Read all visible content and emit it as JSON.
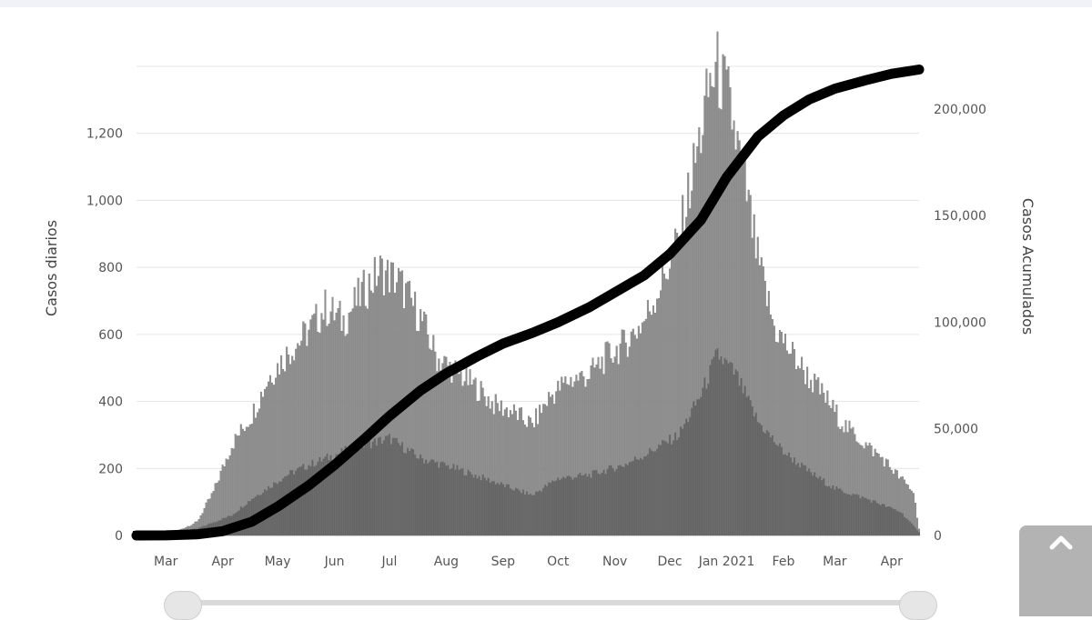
{
  "chart_data": {
    "type": "bar",
    "ylabel_left": "Casos diarios",
    "ylabel_right": "Casos Acumulados",
    "left_axis": {
      "ylim": [
        0,
        1400
      ],
      "ticks": [
        0,
        200,
        400,
        600,
        800,
        1000,
        1200
      ],
      "tick_labels": [
        "0",
        "200",
        "400",
        "600",
        "800",
        "1,000",
        "1,200"
      ]
    },
    "right_axis": {
      "ylim": [
        0,
        220000
      ],
      "ticks": [
        0,
        50000,
        100000,
        150000,
        200000
      ],
      "tick_labels": [
        "0",
        "50,000",
        "100,000",
        "150,000",
        "200,000"
      ]
    },
    "x_axis": {
      "type": "date",
      "range": [
        "2020-02-28",
        "2021-04-30"
      ],
      "ticks": [
        "2020-03-15",
        "2020-04-15",
        "2020-05-15",
        "2020-06-15",
        "2020-07-15",
        "2020-08-15",
        "2020-09-15",
        "2020-10-15",
        "2020-11-15",
        "2020-12-15",
        "2021-01-15",
        "2021-02-15",
        "2021-03-15",
        "2021-04-15"
      ],
      "tick_labels": [
        "Mar",
        "Apr",
        "May",
        "Jun",
        "Jul",
        "Aug",
        "Sep",
        "Oct",
        "Nov",
        "Dec",
        "Jan 2021",
        "Feb",
        "Mar",
        "Apr"
      ]
    },
    "grid": true,
    "series": [
      {
        "type": "bar",
        "axis": "left",
        "color": "#8c8c8c",
        "points": [
          [
            "2020-03-01",
            0
          ],
          [
            "2020-03-10",
            2
          ],
          [
            "2020-03-20",
            10
          ],
          [
            "2020-04-01",
            40
          ],
          [
            "2020-04-10",
            130
          ],
          [
            "2020-04-20",
            270
          ],
          [
            "2020-05-01",
            360
          ],
          [
            "2020-05-10",
            470
          ],
          [
            "2020-05-20",
            540
          ],
          [
            "2020-06-01",
            610
          ],
          [
            "2020-06-10",
            680
          ],
          [
            "2020-06-20",
            640
          ],
          [
            "2020-07-01",
            730
          ],
          [
            "2020-07-10",
            790
          ],
          [
            "2020-07-20",
            760
          ],
          [
            "2020-08-01",
            650
          ],
          [
            "2020-08-10",
            530
          ],
          [
            "2020-08-20",
            490
          ],
          [
            "2020-09-01",
            440
          ],
          [
            "2020-09-10",
            390
          ],
          [
            "2020-09-20",
            370
          ],
          [
            "2020-10-01",
            330
          ],
          [
            "2020-10-10",
            410
          ],
          [
            "2020-10-20",
            460
          ],
          [
            "2020-11-01",
            480
          ],
          [
            "2020-11-10",
            530
          ],
          [
            "2020-11-20",
            570
          ],
          [
            "2020-12-01",
            640
          ],
          [
            "2020-12-10",
            750
          ],
          [
            "2020-12-20",
            880
          ],
          [
            "2021-01-01",
            1200
          ],
          [
            "2021-01-06",
            1350
          ],
          [
            "2021-01-10",
            1390
          ],
          [
            "2021-01-16",
            1300
          ],
          [
            "2021-01-25",
            1050
          ],
          [
            "2021-02-01",
            820
          ],
          [
            "2021-02-10",
            620
          ],
          [
            "2021-02-20",
            540
          ],
          [
            "2021-03-01",
            470
          ],
          [
            "2021-03-10",
            410
          ],
          [
            "2021-03-20",
            330
          ],
          [
            "2021-04-01",
            270
          ],
          [
            "2021-04-10",
            230
          ],
          [
            "2021-04-20",
            170
          ],
          [
            "2021-04-27",
            130
          ],
          [
            "2021-04-30",
            20
          ]
        ]
      },
      {
        "type": "bar",
        "axis": "left",
        "color": "#555555",
        "points": [
          [
            "2020-03-01",
            0
          ],
          [
            "2020-04-01",
            20
          ],
          [
            "2020-04-20",
            60
          ],
          [
            "2020-05-01",
            110
          ],
          [
            "2020-05-20",
            180
          ],
          [
            "2020-06-01",
            210
          ],
          [
            "2020-06-20",
            250
          ],
          [
            "2020-07-01",
            270
          ],
          [
            "2020-07-15",
            290
          ],
          [
            "2020-08-01",
            230
          ],
          [
            "2020-08-20",
            200
          ],
          [
            "2020-09-10",
            160
          ],
          [
            "2020-09-20",
            140
          ],
          [
            "2020-10-01",
            120
          ],
          [
            "2020-10-15",
            170
          ],
          [
            "2020-11-01",
            180
          ],
          [
            "2020-11-20",
            210
          ],
          [
            "2020-12-01",
            240
          ],
          [
            "2020-12-20",
            300
          ],
          [
            "2021-01-01",
            420
          ],
          [
            "2021-01-10",
            540
          ],
          [
            "2021-01-20",
            480
          ],
          [
            "2021-02-01",
            340
          ],
          [
            "2021-02-15",
            250
          ],
          [
            "2021-03-01",
            190
          ],
          [
            "2021-03-15",
            140
          ],
          [
            "2021-04-01",
            110
          ],
          [
            "2021-04-20",
            70
          ],
          [
            "2021-04-30",
            10
          ]
        ]
      },
      {
        "type": "line",
        "axis": "right",
        "color": "#000000",
        "points": [
          [
            "2020-02-28",
            0
          ],
          [
            "2020-03-15",
            50
          ],
          [
            "2020-04-01",
            500
          ],
          [
            "2020-04-15",
            2000
          ],
          [
            "2020-05-01",
            6500
          ],
          [
            "2020-05-15",
            13500
          ],
          [
            "2020-06-01",
            23500
          ],
          [
            "2020-06-15",
            33000
          ],
          [
            "2020-07-01",
            45000
          ],
          [
            "2020-07-15",
            56000
          ],
          [
            "2020-08-01",
            68000
          ],
          [
            "2020-08-15",
            76000
          ],
          [
            "2020-09-01",
            84000
          ],
          [
            "2020-09-15",
            90000
          ],
          [
            "2020-10-01",
            95000
          ],
          [
            "2020-10-15",
            100000
          ],
          [
            "2020-11-01",
            107000
          ],
          [
            "2020-11-15",
            114000
          ],
          [
            "2020-12-01",
            122000
          ],
          [
            "2020-12-15",
            132000
          ],
          [
            "2021-01-01",
            148000
          ],
          [
            "2021-01-15",
            168000
          ],
          [
            "2021-02-01",
            187000
          ],
          [
            "2021-02-15",
            197000
          ],
          [
            "2021-03-01",
            204500
          ],
          [
            "2021-03-15",
            209500
          ],
          [
            "2021-04-01",
            213500
          ],
          [
            "2021-04-15",
            216500
          ],
          [
            "2021-04-30",
            218500
          ]
        ]
      }
    ]
  },
  "ui": {
    "scroll_top_icon": "chevron-up-icon",
    "navigator_handle_icon": "grip-icon"
  }
}
